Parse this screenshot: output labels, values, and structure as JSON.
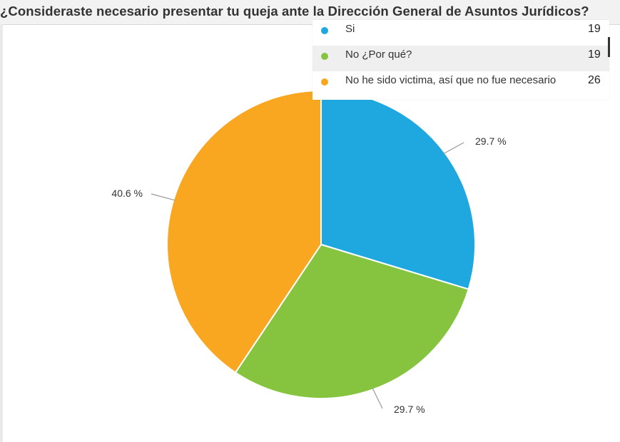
{
  "title": "¿Consideraste necesario presentar tu queja ante la Dirección General de Asuntos Jurídicos?",
  "legend": {
    "items": [
      {
        "label": "Si",
        "count": "19",
        "color": "#1fa8e0"
      },
      {
        "label": "No ¿Por qué?",
        "count": "19",
        "color": "#86c440"
      },
      {
        "label": "No he sido victima, así que no fue necesario",
        "count": "26",
        "color": "#f9a621"
      }
    ]
  },
  "chart_data": {
    "type": "pie",
    "title": "¿Consideraste necesario presentar tu queja ante la Dirección General de Asuntos Jurídicos?",
    "categories": [
      "Si",
      "No ¿Por qué?",
      "No he sido victima, así que no fue necesario"
    ],
    "values": [
      19,
      19,
      26
    ],
    "percent_labels": [
      "29.7 %",
      "29.7 %",
      "40.6 %"
    ],
    "colors": [
      "#1fa8e0",
      "#86c440",
      "#f9a621"
    ],
    "legend_position": "top-right"
  }
}
